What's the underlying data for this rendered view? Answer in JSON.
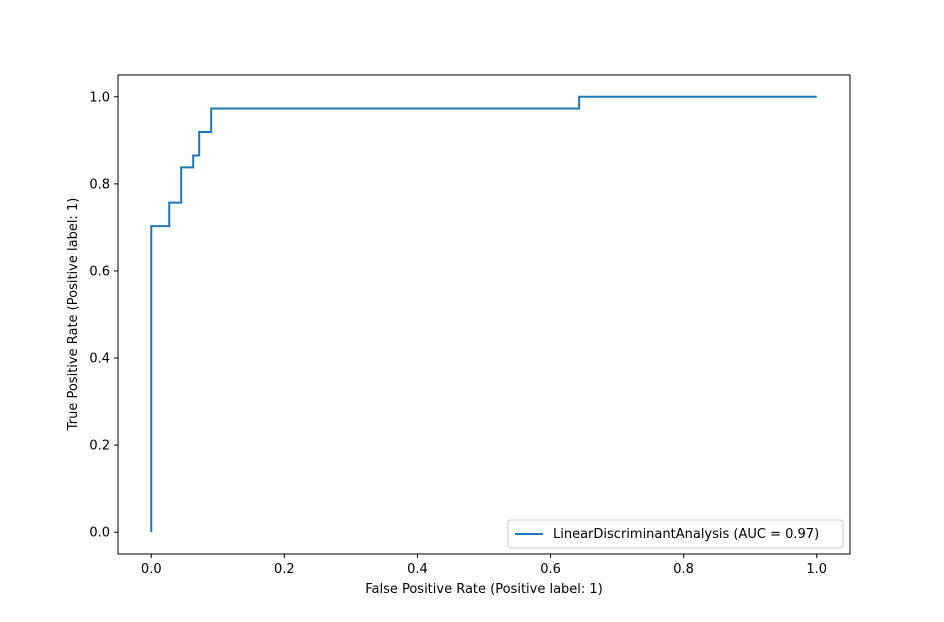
{
  "chart_data": {
    "type": "line",
    "title": "",
    "xlabel": "False Positive Rate (Positive label: 1)",
    "ylabel": "True Positive Rate (Positive label: 1)",
    "xlim": [
      -0.05,
      1.05
    ],
    "ylim": [
      -0.05,
      1.05
    ],
    "xticks": [
      0.0,
      0.2,
      0.4,
      0.6,
      0.8,
      1.0
    ],
    "yticks": [
      0.0,
      0.2,
      0.4,
      0.6,
      0.8,
      1.0
    ],
    "xtick_labels": [
      "0.0",
      "0.2",
      "0.4",
      "0.6",
      "0.8",
      "1.0"
    ],
    "ytick_labels": [
      "0.0",
      "0.2",
      "0.4",
      "0.6",
      "0.8",
      "1.0"
    ],
    "grid": false,
    "legend_position": "lower-right",
    "series": [
      {
        "name": "LinearDiscriminantAnalysis (AUC = 0.97)",
        "color": "#1f77b4",
        "step": true,
        "x": [
          0.0,
          0.0,
          0.0,
          0.027,
          0.027,
          0.045,
          0.045,
          0.063,
          0.063,
          0.072,
          0.072,
          0.09,
          0.09,
          0.643,
          0.643,
          1.0
        ],
        "y": [
          0.0,
          0.0,
          0.703,
          0.703,
          0.757,
          0.757,
          0.838,
          0.838,
          0.865,
          0.865,
          0.919,
          0.919,
          0.973,
          0.973,
          1.0,
          1.0
        ]
      }
    ]
  }
}
